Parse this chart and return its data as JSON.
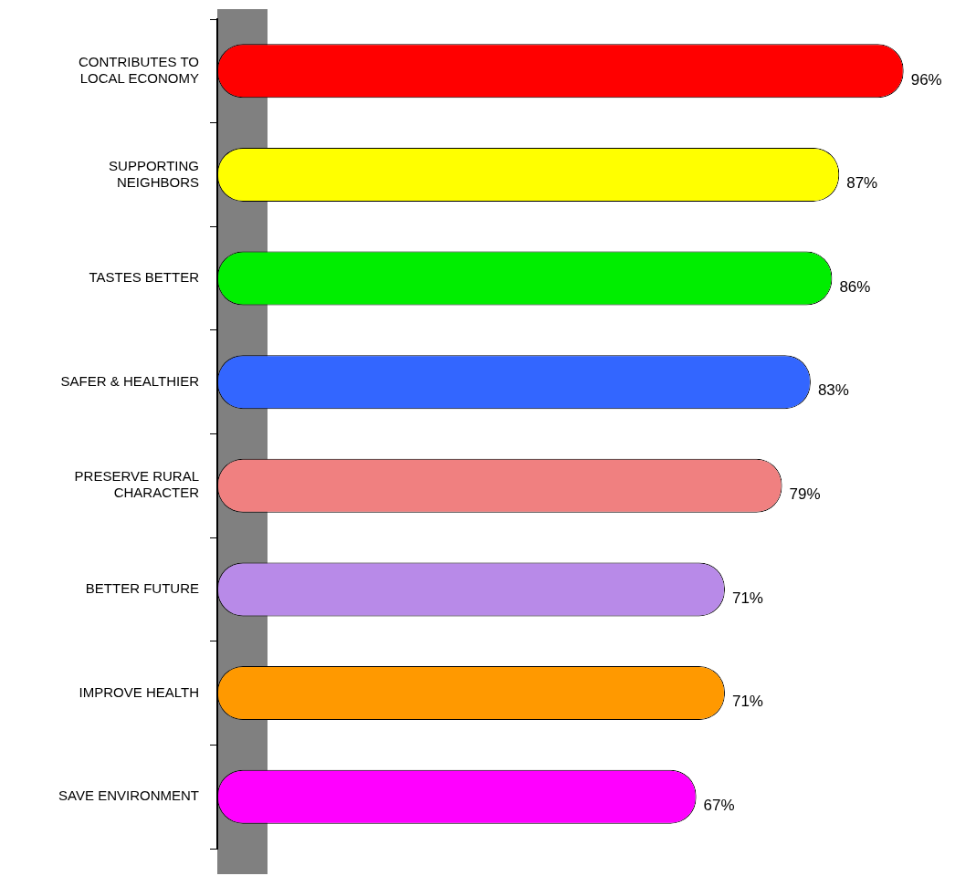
{
  "chart_data": {
    "type": "bar",
    "orientation": "horizontal",
    "categories": [
      "CONTRIBUTES TO LOCAL ECONOMY",
      "SUPPORTING NEIGHBORS",
      "TASTES BETTER",
      "SAFER & HEALTHIER",
      "PRESERVE RURAL CHARACTER",
      "BETTER FUTURE",
      "IMPROVE HEALTH",
      "SAVE ENVIRONMENT"
    ],
    "values": [
      96,
      87,
      86,
      83,
      79,
      71,
      71,
      67
    ],
    "value_labels": [
      "96%",
      "87%",
      "86%",
      "83%",
      "79%",
      "71%",
      "71%",
      "67%"
    ],
    "colors": [
      "#ff0000",
      "#ffff00",
      "#00ee00",
      "#3366ff",
      "#f08080",
      "#b88ae8",
      "#ff9900",
      "#ff00ff"
    ],
    "tick_labels": "y",
    "grid": false,
    "legend": false
  }
}
